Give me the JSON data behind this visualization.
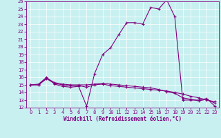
{
  "xlabel": "Windchill (Refroidissement éolien,°C)",
  "xlim": [
    -0.5,
    23.5
  ],
  "ylim": [
    12,
    26
  ],
  "xticks": [
    0,
    1,
    2,
    3,
    4,
    5,
    6,
    7,
    8,
    9,
    10,
    11,
    12,
    13,
    14,
    15,
    16,
    17,
    18,
    19,
    20,
    21,
    22,
    23
  ],
  "yticks": [
    12,
    13,
    14,
    15,
    16,
    17,
    18,
    19,
    20,
    21,
    22,
    23,
    24,
    25,
    26
  ],
  "bg_color": "#c8f0f0",
  "line_color": "#800080",
  "marker": "+",
  "series": [
    [
      15.0,
      15.1,
      16.0,
      15.1,
      14.8,
      14.7,
      14.8,
      12.2,
      16.5,
      19.0,
      19.9,
      21.6,
      23.2,
      23.2,
      23.0,
      25.2,
      25.0,
      26.2,
      24.0,
      13.0,
      13.0,
      13.0,
      13.2,
      12.2
    ],
    [
      15.0,
      15.0,
      15.8,
      15.2,
      15.0,
      14.9,
      14.9,
      14.7,
      15.0,
      15.1,
      14.9,
      14.8,
      14.7,
      14.6,
      14.5,
      14.4,
      14.3,
      14.2,
      14.0,
      13.8,
      13.5,
      13.3,
      13.0,
      12.8
    ],
    [
      15.0,
      15.0,
      15.9,
      15.3,
      15.1,
      15.0,
      15.0,
      15.0,
      15.1,
      15.2,
      15.1,
      15.0,
      14.9,
      14.8,
      14.7,
      14.6,
      14.4,
      14.1,
      13.9,
      13.3,
      13.1,
      12.9,
      13.1,
      12.6
    ]
  ]
}
